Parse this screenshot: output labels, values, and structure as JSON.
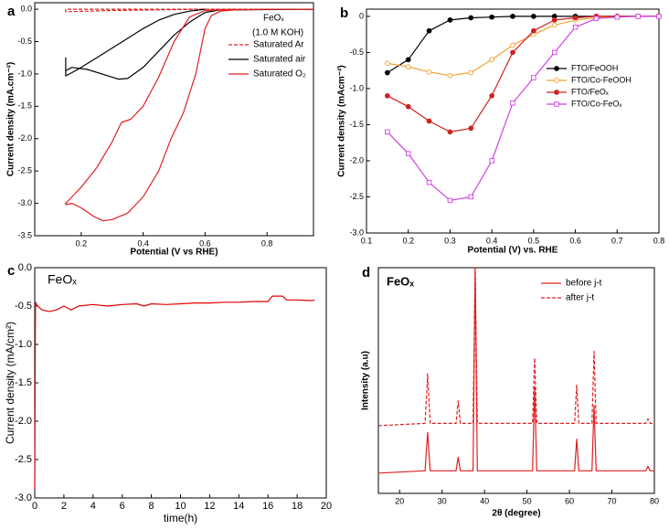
{
  "chart_data": [
    {
      "type": "line",
      "label": "a",
      "xlabel": "Potential (V vs RHE)",
      "ylabel": "Current density (mA.cm⁻²)",
      "annotations": [
        "FeOₓ",
        "(1.0 M KOH)"
      ],
      "xlim": [
        0.05,
        0.95
      ],
      "xticks": [
        0.2,
        0.4,
        0.6,
        0.8
      ],
      "ylim": [
        -3.5,
        0.1
      ],
      "yticks": [
        {
          "value": 0,
          "label": "0.0"
        },
        -0.5,
        {
          "value": -1,
          "label": "-1.0"
        },
        -1.5,
        {
          "value": -2,
          "label": "-2.0"
        },
        -2.5,
        {
          "value": -3,
          "label": "-3.0"
        },
        -3.5
      ],
      "legend": "upper right",
      "series": [
        {
          "name": "Saturated Ar",
          "color": "#e02020",
          "dash": true,
          "x": [
            0.95,
            0.6,
            0.3,
            0.15,
            0.15,
            0.3,
            0.6,
            0.95
          ],
          "values": [
            0,
            0,
            -0.02,
            -0.04,
            0,
            0,
            0,
            0
          ]
        },
        {
          "name": "Saturated air",
          "color": "#000000",
          "dash": false,
          "x": [
            0.95,
            0.65,
            0.6,
            0.55,
            0.5,
            0.45,
            0.4,
            0.35,
            0.32,
            0.28,
            0.22,
            0.17,
            0.15,
            0.15,
            0.15,
            0.17,
            0.2,
            0.25,
            0.3,
            0.35,
            0.4,
            0.45,
            0.5,
            0.55,
            0.6
          ],
          "values": [
            0,
            -0.01,
            -0.05,
            -0.2,
            -0.4,
            -0.65,
            -0.9,
            -1.07,
            -1.08,
            -1.02,
            -0.93,
            -0.9,
            -0.95,
            -0.75,
            -1.03,
            -0.98,
            -0.9,
            -0.75,
            -0.6,
            -0.45,
            -0.3,
            -0.17,
            -0.08,
            -0.03,
            0
          ]
        },
        {
          "name": "Saturated O₂",
          "color": "#e02020",
          "dash": false,
          "x": [
            0.95,
            0.8,
            0.7,
            0.65,
            0.62,
            0.6,
            0.57,
            0.53,
            0.49,
            0.45,
            0.4,
            0.35,
            0.3,
            0.27,
            0.24,
            0.2,
            0.17,
            0.15,
            0.15,
            0.17,
            0.2,
            0.25,
            0.3,
            0.33,
            0.36,
            0.4,
            0.45,
            0.5,
            0.55,
            0.6,
            0.7
          ],
          "values": [
            0,
            0,
            -0.01,
            -0.03,
            -0.1,
            -0.3,
            -1.0,
            -1.6,
            -2.0,
            -2.5,
            -2.9,
            -3.15,
            -3.25,
            -3.27,
            -3.2,
            -3.07,
            -3.0,
            -3.02,
            -3.0,
            -2.9,
            -2.75,
            -2.45,
            -2.05,
            -1.75,
            -1.7,
            -1.5,
            -1.05,
            -0.5,
            -0.12,
            -0.02,
            0
          ]
        }
      ]
    },
    {
      "type": "line",
      "label": "b",
      "xlabel": "Potential (V) vs. RHE",
      "ylabel": "Current density (mAcm⁻²)",
      "annotations": [],
      "xlim": [
        0.1,
        0.8
      ],
      "xticks": [
        0.1,
        0.2,
        0.3,
        0.4,
        0.5,
        0.6,
        0.7,
        0.8
      ],
      "ylim": [
        -3,
        0.1
      ],
      "yticks": [
        0,
        -0.5,
        {
          "value": -1,
          "label": "-1.0"
        },
        -1.5,
        {
          "value": -2,
          "label": "-2.0"
        },
        -2.5,
        {
          "value": -3,
          "label": "-3.0"
        }
      ],
      "legend": "upper right",
      "series": [
        {
          "name": "FTO/FeOOH",
          "color": "#000000",
          "marker": "circle",
          "x": [
            0.15,
            0.2,
            0.25,
            0.3,
            0.35,
            0.4,
            0.45,
            0.5,
            0.55,
            0.6,
            0.65,
            0.7,
            0.75,
            0.8
          ],
          "values": [
            -0.78,
            -0.6,
            -0.2,
            -0.05,
            -0.02,
            -0.01,
            0,
            0,
            0,
            0,
            0,
            0,
            0,
            0
          ]
        },
        {
          "name": "FTO/Co-FeOOH",
          "color": "#f0a030",
          "marker": "circle-open",
          "x": [
            0.15,
            0.2,
            0.25,
            0.3,
            0.35,
            0.4,
            0.45,
            0.5,
            0.55,
            0.6,
            0.65,
            0.7,
            0.75,
            0.8
          ],
          "values": [
            -0.65,
            -0.7,
            -0.77,
            -0.82,
            -0.78,
            -0.6,
            -0.4,
            -0.25,
            -0.12,
            -0.05,
            -0.02,
            0,
            0,
            0
          ]
        },
        {
          "name": "FTO/FeOₓ",
          "color": "#d02020",
          "marker": "circle",
          "x": [
            0.15,
            0.2,
            0.25,
            0.3,
            0.35,
            0.4,
            0.45,
            0.5,
            0.55,
            0.6,
            0.65,
            0.7,
            0.75,
            0.8
          ],
          "values": [
            -1.1,
            -1.25,
            -1.45,
            -1.6,
            -1.55,
            -1.1,
            -0.5,
            -0.2,
            -0.05,
            -0.02,
            0,
            0,
            0,
            0
          ]
        },
        {
          "name": "FTO/Co-FeOₓ",
          "color": "#d040e0",
          "marker": "square-open",
          "x": [
            0.15,
            0.2,
            0.25,
            0.3,
            0.35,
            0.4,
            0.45,
            0.5,
            0.55,
            0.6,
            0.65,
            0.7,
            0.75,
            0.8
          ],
          "values": [
            -1.6,
            -1.9,
            -2.3,
            -2.55,
            -2.5,
            -2.0,
            -1.2,
            -0.85,
            -0.5,
            -0.15,
            -0.03,
            -0.01,
            0,
            0
          ]
        }
      ]
    },
    {
      "type": "line",
      "label": "c",
      "xlabel": "time(h)",
      "ylabel": "Current density (mA/cm²)",
      "annotations": [
        "FeOₓ"
      ],
      "xlim": [
        0,
        20
      ],
      "xticks": [
        0,
        2,
        4,
        6,
        8,
        10,
        12,
        14,
        16,
        18,
        20
      ],
      "ylim": [
        -3,
        0
      ],
      "yticks": [
        {
          "value": 0,
          "label": "0.0"
        },
        -0.5,
        {
          "value": -1,
          "label": "-1.0"
        },
        -1.5,
        {
          "value": -2,
          "label": "-2.0"
        },
        -2.5,
        {
          "value": -3,
          "label": "-3.0"
        }
      ],
      "series": [
        {
          "color": "#e00000",
          "x": [
            0,
            0.05,
            0.2,
            0.5,
            1,
            1.5,
            2,
            2.5,
            3,
            4,
            5,
            6,
            7,
            7.5,
            8,
            9,
            10,
            11,
            12,
            13,
            14,
            15,
            16,
            16.3,
            17,
            17.3,
            18,
            19,
            19.2
          ],
          "values": [
            -2.9,
            -0.45,
            -0.5,
            -0.55,
            -0.57,
            -0.55,
            -0.5,
            -0.55,
            -0.5,
            -0.48,
            -0.5,
            -0.48,
            -0.47,
            -0.5,
            -0.47,
            -0.48,
            -0.47,
            -0.46,
            -0.46,
            -0.45,
            -0.45,
            -0.44,
            -0.44,
            -0.37,
            -0.37,
            -0.42,
            -0.42,
            -0.43,
            -0.42
          ]
        }
      ]
    },
    {
      "type": "line",
      "label": "d",
      "xlabel": "2θ (degree)",
      "ylabel": "Intensity (a.u)",
      "annotations": [
        "FeOₓ"
      ],
      "xlim": [
        15,
        80
      ],
      "xticks": [
        20,
        30,
        40,
        50,
        60,
        70,
        80
      ],
      "ylim": [
        0,
        100
      ],
      "legend": "upper right",
      "series": [
        {
          "name": "before j-t",
          "color": "#e02020",
          "dash": false,
          "x": [
            15,
            26,
            26.6,
            27.2,
            33.3,
            33.8,
            34.3,
            37.3,
            37.8,
            38.3,
            51.3,
            51.8,
            52.3,
            61.2,
            61.7,
            62.2,
            65.3,
            65.8,
            66.3,
            78,
            78.5,
            79,
            80
          ],
          "values": [
            9,
            10,
            27,
            10,
            10,
            16,
            10,
            10,
            100,
            10,
            10,
            47,
            10,
            10,
            24,
            10,
            10,
            39,
            10,
            10,
            12,
            10,
            10
          ]
        },
        {
          "name": "after j-t",
          "color": "#e02020",
          "dash": true,
          "x": [
            15,
            26,
            26.6,
            27.2,
            33.3,
            33.8,
            34.3,
            37.3,
            37.8,
            38.3,
            51.3,
            51.8,
            52.3,
            61.2,
            61.7,
            62.2,
            65.3,
            65.8,
            66.3,
            78,
            78.5,
            79,
            80
          ],
          "values": [
            30,
            31,
            53,
            31,
            31,
            41,
            31,
            31,
            100,
            31,
            31,
            60,
            31,
            31,
            48,
            31,
            31,
            63,
            31,
            31,
            33,
            31,
            31
          ]
        }
      ]
    }
  ]
}
